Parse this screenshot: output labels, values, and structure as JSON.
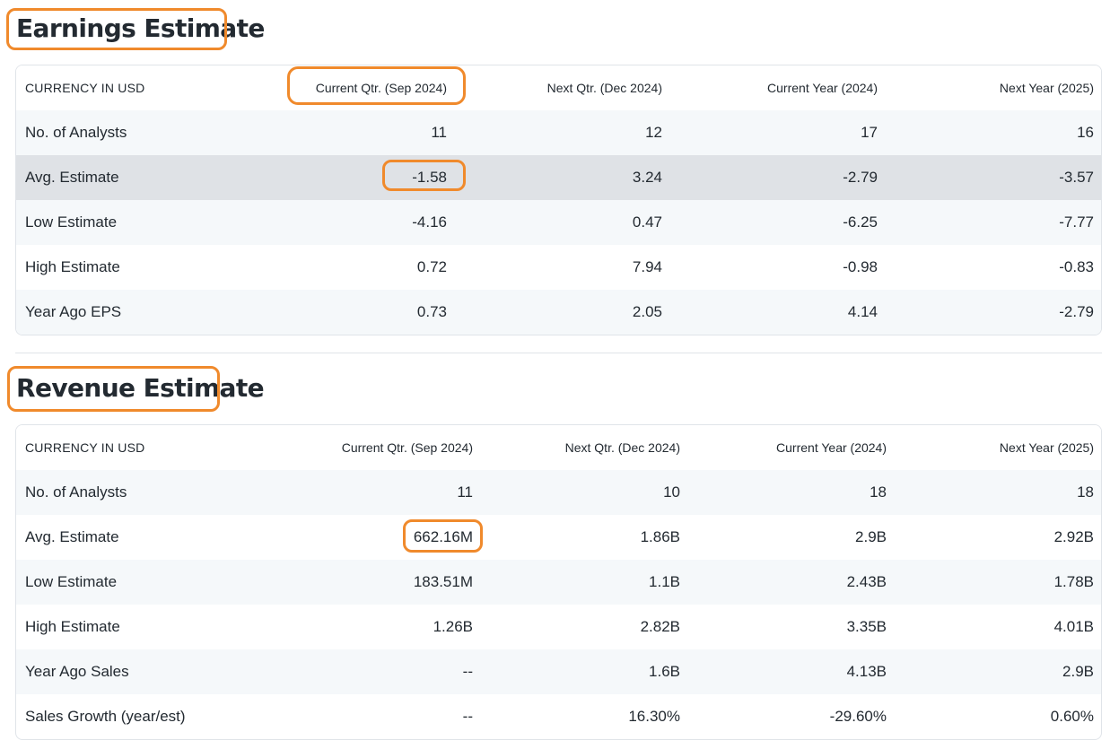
{
  "earnings": {
    "title": "Earnings Estimate",
    "headers": [
      "CURRENCY IN USD",
      "Current Qtr. (Sep 2024)",
      "Next Qtr. (Dec 2024)",
      "Current Year (2024)",
      "Next Year (2025)"
    ],
    "rows": [
      {
        "label": "No. of Analysts",
        "values": [
          "11",
          "12",
          "17",
          "16"
        ]
      },
      {
        "label": "Avg. Estimate",
        "values": [
          "-1.58",
          "3.24",
          "-2.79",
          "-3.57"
        ]
      },
      {
        "label": "Low Estimate",
        "values": [
          "-4.16",
          "0.47",
          "-6.25",
          "-7.77"
        ]
      },
      {
        "label": "High Estimate",
        "values": [
          "0.72",
          "7.94",
          "-0.98",
          "-0.83"
        ]
      },
      {
        "label": "Year Ago EPS",
        "values": [
          "0.73",
          "2.05",
          "4.14",
          "-2.79"
        ]
      }
    ]
  },
  "revenue": {
    "title": "Revenue Estimate",
    "headers": [
      "CURRENCY IN USD",
      "Current Qtr. (Sep 2024)",
      "Next Qtr. (Dec 2024)",
      "Current Year (2024)",
      "Next Year (2025)"
    ],
    "rows": [
      {
        "label": "No. of Analysts",
        "values": [
          "11",
          "10",
          "18",
          "18"
        ]
      },
      {
        "label": "Avg. Estimate",
        "values": [
          "662.16M",
          "1.86B",
          "2.9B",
          "2.92B"
        ]
      },
      {
        "label": "Low Estimate",
        "values": [
          "183.51M",
          "1.1B",
          "2.43B",
          "1.78B"
        ]
      },
      {
        "label": "High Estimate",
        "values": [
          "1.26B",
          "2.82B",
          "3.35B",
          "4.01B"
        ]
      },
      {
        "label": "Year Ago Sales",
        "values": [
          "--",
          "1.6B",
          "4.13B",
          "2.9B"
        ]
      },
      {
        "label": "Sales Growth (year/est)",
        "values": [
          "--",
          "16.30%",
          "-29.60%",
          "0.60%"
        ]
      }
    ]
  },
  "colors": {
    "annotation": "#f08a2c",
    "row_stripe": "#f5f8fa",
    "row_highlight": "#dfe2e6",
    "text": "#232a31"
  }
}
